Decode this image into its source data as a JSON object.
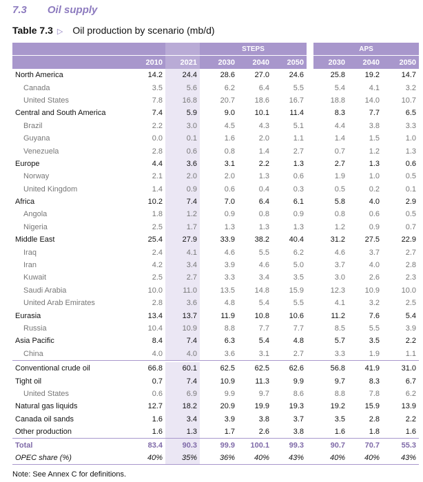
{
  "header": {
    "number": "7.3",
    "section": "Oil supply",
    "table_label": "Table 7.3",
    "title": "Oil production by scenario",
    "unit": "(mb/d)"
  },
  "table": {
    "groups": [
      "STEPS",
      "APS"
    ],
    "years": [
      "2010",
      "2021",
      "2030",
      "2040",
      "2050",
      "2030",
      "2040",
      "2050"
    ],
    "regions": [
      {
        "label": "North America",
        "values": [
          "14.2",
          "24.4",
          "28.6",
          "27.0",
          "24.6",
          "25.8",
          "19.2",
          "14.7"
        ],
        "sub": [
          {
            "label": "Canada",
            "values": [
              "3.5",
              "5.6",
              "6.2",
              "6.4",
              "5.5",
              "5.4",
              "4.1",
              "3.2"
            ]
          },
          {
            "label": "United States",
            "values": [
              "7.8",
              "16.8",
              "20.7",
              "18.6",
              "16.7",
              "18.8",
              "14.0",
              "10.7"
            ]
          }
        ]
      },
      {
        "label": "Central and South America",
        "values": [
          "7.4",
          "5.9",
          "9.0",
          "10.1",
          "11.4",
          "8.3",
          "7.7",
          "6.5"
        ],
        "sub": [
          {
            "label": "Brazil",
            "values": [
              "2.2",
              "3.0",
              "4.5",
              "4.3",
              "5.1",
              "4.4",
              "3.8",
              "3.3"
            ]
          },
          {
            "label": "Guyana",
            "values": [
              "0.0",
              "0.1",
              "1.6",
              "2.0",
              "1.1",
              "1.4",
              "1.5",
              "1.0"
            ]
          },
          {
            "label": "Venezuela",
            "values": [
              "2.8",
              "0.6",
              "0.8",
              "1.4",
              "2.7",
              "0.7",
              "1.2",
              "1.3"
            ]
          }
        ]
      },
      {
        "label": "Europe",
        "values": [
          "4.4",
          "3.6",
          "3.1",
          "2.2",
          "1.3",
          "2.7",
          "1.3",
          "0.6"
        ],
        "sub": [
          {
            "label": "Norway",
            "values": [
              "2.1",
              "2.0",
              "2.0",
              "1.3",
              "0.6",
              "1.9",
              "1.0",
              "0.5"
            ]
          },
          {
            "label": "United Kingdom",
            "values": [
              "1.4",
              "0.9",
              "0.6",
              "0.4",
              "0.3",
              "0.5",
              "0.2",
              "0.1"
            ]
          }
        ]
      },
      {
        "label": "Africa",
        "values": [
          "10.2",
          "7.4",
          "7.0",
          "6.4",
          "6.1",
          "5.8",
          "4.0",
          "2.9"
        ],
        "sub": [
          {
            "label": "Angola",
            "values": [
              "1.8",
              "1.2",
              "0.9",
              "0.8",
              "0.9",
              "0.8",
              "0.6",
              "0.5"
            ]
          },
          {
            "label": "Nigeria",
            "values": [
              "2.5",
              "1.7",
              "1.3",
              "1.3",
              "1.3",
              "1.2",
              "0.9",
              "0.7"
            ]
          }
        ]
      },
      {
        "label": "Middle East",
        "values": [
          "25.4",
          "27.9",
          "33.9",
          "38.2",
          "40.4",
          "31.2",
          "27.5",
          "22.9"
        ],
        "sub": [
          {
            "label": "Iraq",
            "values": [
              "2.4",
              "4.1",
              "4.6",
              "5.5",
              "6.2",
              "4.6",
              "3.7",
              "2.7"
            ]
          },
          {
            "label": "Iran",
            "values": [
              "4.2",
              "3.4",
              "3.9",
              "4.6",
              "5.0",
              "3.7",
              "4.0",
              "2.8"
            ]
          },
          {
            "label": "Kuwait",
            "values": [
              "2.5",
              "2.7",
              "3.3",
              "3.4",
              "3.5",
              "3.0",
              "2.6",
              "2.3"
            ]
          },
          {
            "label": "Saudi Arabia",
            "values": [
              "10.0",
              "11.0",
              "13.5",
              "14.8",
              "15.9",
              "12.3",
              "10.9",
              "10.0"
            ]
          },
          {
            "label": "United Arab Emirates",
            "values": [
              "2.8",
              "3.6",
              "4.8",
              "5.4",
              "5.5",
              "4.1",
              "3.2",
              "2.5"
            ]
          }
        ]
      },
      {
        "label": "Eurasia",
        "values": [
          "13.4",
          "13.7",
          "11.9",
          "10.8",
          "10.6",
          "11.2",
          "7.6",
          "5.4"
        ],
        "sub": [
          {
            "label": "Russia",
            "values": [
              "10.4",
              "10.9",
              "8.8",
              "7.7",
              "7.7",
              "8.5",
              "5.5",
              "3.9"
            ]
          }
        ]
      },
      {
        "label": "Asia Pacific",
        "values": [
          "8.4",
          "7.4",
          "6.3",
          "5.4",
          "4.8",
          "5.7",
          "3.5",
          "2.2"
        ],
        "sub": [
          {
            "label": "China",
            "values": [
              "4.0",
              "4.0",
              "3.6",
              "3.1",
              "2.7",
              "3.3",
              "1.9",
              "1.1"
            ]
          }
        ]
      }
    ],
    "supply": [
      {
        "label": "Conventional crude oil",
        "values": [
          "66.8",
          "60.1",
          "62.5",
          "62.5",
          "62.6",
          "56.8",
          "41.9",
          "31.0"
        ],
        "sub": []
      },
      {
        "label": "Tight oil",
        "values": [
          "0.7",
          "7.4",
          "10.9",
          "11.3",
          "9.9",
          "9.7",
          "8.3",
          "6.7"
        ],
        "sub": [
          {
            "label": "United States",
            "values": [
              "0.6",
              "6.9",
              "9.9",
              "9.7",
              "8.6",
              "8.8",
              "7.8",
              "6.2"
            ]
          }
        ]
      },
      {
        "label": "Natural gas liquids",
        "values": [
          "12.7",
          "18.2",
          "20.9",
          "19.9",
          "19.3",
          "19.2",
          "15.9",
          "13.9"
        ],
        "sub": []
      },
      {
        "label": "Canada oil sands",
        "values": [
          "1.6",
          "3.4",
          "3.9",
          "3.8",
          "3.7",
          "3.5",
          "2.8",
          "2.2"
        ],
        "sub": []
      },
      {
        "label": "Other production",
        "values": [
          "1.6",
          "1.3",
          "1.7",
          "2.6",
          "3.8",
          "1.6",
          "1.8",
          "1.6"
        ],
        "sub": []
      }
    ],
    "total": {
      "label": "Total",
      "values": [
        "83.4",
        "90.3",
        "99.9",
        "100.1",
        "99.3",
        "90.7",
        "70.7",
        "55.3"
      ]
    },
    "opec": {
      "label": "OPEC share (%)",
      "values": [
        "40%",
        "35%",
        "36%",
        "40%",
        "43%",
        "40%",
        "40%",
        "43%"
      ]
    }
  },
  "note": "Note: See Annex C for definitions."
}
